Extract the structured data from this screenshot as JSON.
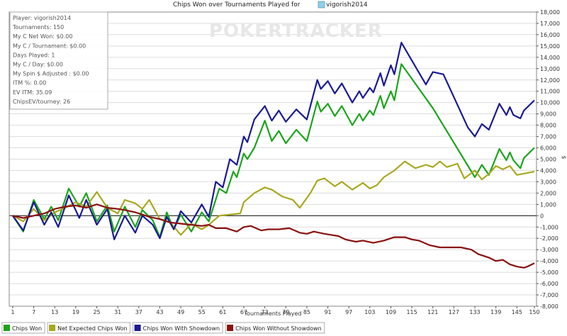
{
  "title_prefix": "Chips Won over Tournaments Played for",
  "player_name": "vigorish2014",
  "watermark": "POKERTRACKER",
  "stats": [
    "Player: vigorish2014",
    "Tournaments: 150",
    "My C Net Won: $0.00",
    "My C / Tournament: $0.00",
    "Days Played: 1",
    "My C / Day: $0.00",
    "My Spin $ Adjusted : $0.00",
    "ITM %: 0.00",
    "EV ITM: 35.09",
    "ChipsEV/tourney: 26"
  ],
  "legend": [
    {
      "label": "Chips Won",
      "color": "#1aa51a"
    },
    {
      "label": "Net Expected Chips Won",
      "color": "#a8a81e"
    },
    {
      "label": "Chips Won With Showdown",
      "color": "#1a1a96"
    },
    {
      "label": "Chips Won Without Showdown",
      "color": "#8b1010"
    }
  ],
  "colors": {
    "chips_won": "#1aa51a",
    "net_expected": "#a8a81e",
    "with_showdown": "#1a1a96",
    "without_showdown": "#8b1010"
  },
  "chart_data": {
    "type": "line",
    "xlabel": "Tournaments Played",
    "ylabel": "$",
    "xlim": [
      1,
      150
    ],
    "ylim": [
      -8000,
      18000
    ],
    "xticks": [
      1,
      7,
      13,
      19,
      25,
      31,
      37,
      43,
      49,
      55,
      61,
      67,
      73,
      79,
      85,
      91,
      97,
      103,
      109,
      115,
      121,
      127,
      133,
      139,
      145,
      150
    ],
    "yticks": [
      -8000,
      -7000,
      -6000,
      -5000,
      -4000,
      -3000,
      -2000,
      -1000,
      0,
      1000,
      2000,
      3000,
      4000,
      5000,
      6000,
      7000,
      8000,
      9000,
      10000,
      11000,
      12000,
      13000,
      14000,
      15000,
      16000,
      17000,
      18000
    ],
    "ytick_labels": [
      "-8,000",
      "-7,000",
      "-6,000",
      "-5,000",
      "-4,000",
      "-3,000",
      "-2,000",
      "-1,000",
      "0",
      "1,000",
      "2,000",
      "3,000",
      "4,000",
      "5,000",
      "6,000",
      "7,000",
      "8,000",
      "9,000",
      "10,000",
      "11,000",
      "12,000",
      "13,000",
      "14,000",
      "15,000",
      "16,000",
      "17,000",
      "18,000"
    ],
    "series": [
      {
        "name": "Chips Won",
        "color": "#1aa51a",
        "points": [
          [
            1,
            0
          ],
          [
            4,
            -1400
          ],
          [
            7,
            1400
          ],
          [
            10,
            -300
          ],
          [
            12,
            800
          ],
          [
            14,
            -400
          ],
          [
            17,
            2400
          ],
          [
            20,
            800
          ],
          [
            22,
            2000
          ],
          [
            25,
            -500
          ],
          [
            28,
            900
          ],
          [
            30,
            -1400
          ],
          [
            33,
            800
          ],
          [
            36,
            -1000
          ],
          [
            38,
            500
          ],
          [
            41,
            -400
          ],
          [
            43,
            -1900
          ],
          [
            45,
            300
          ],
          [
            47,
            -1200
          ],
          [
            49,
            100
          ],
          [
            52,
            -1400
          ],
          [
            55,
            300
          ],
          [
            57,
            -500
          ],
          [
            60,
            2400
          ],
          [
            62,
            2000
          ],
          [
            64,
            3900
          ],
          [
            65,
            3400
          ],
          [
            67,
            5500
          ],
          [
            68,
            5000
          ],
          [
            70,
            6000
          ],
          [
            73,
            8400
          ],
          [
            75,
            6600
          ],
          [
            77,
            7500
          ],
          [
            79,
            6400
          ],
          [
            82,
            7600
          ],
          [
            85,
            6600
          ],
          [
            88,
            10100
          ],
          [
            89,
            9200
          ],
          [
            91,
            9900
          ],
          [
            93,
            8800
          ],
          [
            95,
            9700
          ],
          [
            98,
            8000
          ],
          [
            100,
            9000
          ],
          [
            101,
            8400
          ],
          [
            103,
            9300
          ],
          [
            104,
            8900
          ],
          [
            106,
            10600
          ],
          [
            107,
            9500
          ],
          [
            109,
            11000
          ],
          [
            110,
            10200
          ],
          [
            112,
            13400
          ],
          [
            121,
            9500
          ],
          [
            133,
            3400
          ],
          [
            135,
            4500
          ],
          [
            137,
            3600
          ],
          [
            140,
            5900
          ],
          [
            142,
            4900
          ],
          [
            143,
            5600
          ],
          [
            144,
            4900
          ],
          [
            146,
            4200
          ],
          [
            147,
            5100
          ],
          [
            150,
            6000
          ]
        ]
      },
      {
        "name": "Net Expected Chips Won",
        "color": "#a8a81e",
        "points": [
          [
            1,
            0
          ],
          [
            4,
            -500
          ],
          [
            7,
            600
          ],
          [
            10,
            -400
          ],
          [
            13,
            300
          ],
          [
            16,
            700
          ],
          [
            19,
            1200
          ],
          [
            22,
            800
          ],
          [
            25,
            2100
          ],
          [
            28,
            700
          ],
          [
            31,
            200
          ],
          [
            33,
            1400
          ],
          [
            36,
            1100
          ],
          [
            38,
            600
          ],
          [
            40,
            1400
          ],
          [
            43,
            -300
          ],
          [
            46,
            -600
          ],
          [
            49,
            -1700
          ],
          [
            52,
            -700
          ],
          [
            55,
            -1200
          ],
          [
            57,
            -800
          ],
          [
            60,
            0
          ],
          [
            63,
            100
          ],
          [
            66,
            200
          ],
          [
            67,
            1200
          ],
          [
            70,
            2000
          ],
          [
            73,
            2500
          ],
          [
            75,
            2300
          ],
          [
            78,
            1700
          ],
          [
            81,
            1400
          ],
          [
            83,
            700
          ],
          [
            86,
            2000
          ],
          [
            88,
            3100
          ],
          [
            90,
            3300
          ],
          [
            93,
            2600
          ],
          [
            95,
            3000
          ],
          [
            98,
            2300
          ],
          [
            101,
            2900
          ],
          [
            103,
            2400
          ],
          [
            105,
            2700
          ],
          [
            107,
            3400
          ],
          [
            110,
            4000
          ],
          [
            113,
            4800
          ],
          [
            116,
            4200
          ],
          [
            119,
            4500
          ],
          [
            121,
            4300
          ],
          [
            123,
            4800
          ],
          [
            125,
            4300
          ],
          [
            128,
            4600
          ],
          [
            130,
            3300
          ],
          [
            133,
            4000
          ],
          [
            135,
            3200
          ],
          [
            137,
            3700
          ],
          [
            139,
            4400
          ],
          [
            141,
            4100
          ],
          [
            143,
            4400
          ],
          [
            145,
            3600
          ],
          [
            150,
            3900
          ]
        ]
      },
      {
        "name": "Chips Won With Showdown",
        "color": "#1a1a96",
        "points": [
          [
            1,
            0
          ],
          [
            4,
            -1300
          ],
          [
            7,
            1200
          ],
          [
            10,
            -800
          ],
          [
            12,
            300
          ],
          [
            14,
            -1000
          ],
          [
            17,
            1800
          ],
          [
            20,
            -200
          ],
          [
            22,
            1400
          ],
          [
            25,
            -800
          ],
          [
            28,
            600
          ],
          [
            30,
            -2100
          ],
          [
            33,
            0
          ],
          [
            36,
            -1500
          ],
          [
            38,
            0
          ],
          [
            41,
            -800
          ],
          [
            43,
            -2000
          ],
          [
            45,
            -100
          ],
          [
            47,
            -1200
          ],
          [
            49,
            400
          ],
          [
            52,
            -600
          ],
          [
            55,
            1000
          ],
          [
            57,
            -100
          ],
          [
            59,
            3000
          ],
          [
            61,
            2500
          ],
          [
            63,
            5000
          ],
          [
            65,
            4500
          ],
          [
            67,
            7000
          ],
          [
            68,
            6500
          ],
          [
            70,
            8500
          ],
          [
            73,
            9700
          ],
          [
            75,
            8400
          ],
          [
            77,
            9300
          ],
          [
            79,
            8300
          ],
          [
            82,
            9400
          ],
          [
            85,
            8500
          ],
          [
            88,
            12000
          ],
          [
            89,
            11200
          ],
          [
            91,
            11900
          ],
          [
            93,
            10800
          ],
          [
            95,
            11700
          ],
          [
            98,
            10000
          ],
          [
            100,
            11000
          ],
          [
            101,
            10400
          ],
          [
            103,
            11300
          ],
          [
            104,
            10900
          ],
          [
            106,
            12600
          ],
          [
            107,
            11500
          ],
          [
            109,
            13300
          ],
          [
            110,
            12500
          ],
          [
            112,
            15300
          ],
          [
            119,
            11600
          ],
          [
            121,
            12700
          ],
          [
            124,
            12500
          ],
          [
            131,
            7800
          ],
          [
            133,
            7000
          ],
          [
            135,
            8100
          ],
          [
            137,
            7600
          ],
          [
            140,
            9900
          ],
          [
            142,
            8900
          ],
          [
            143,
            9600
          ],
          [
            144,
            8900
          ],
          [
            146,
            8600
          ],
          [
            147,
            9300
          ],
          [
            150,
            10200
          ]
        ]
      },
      {
        "name": "Chips Won Without Showdown",
        "color": "#8b1010",
        "points": [
          [
            1,
            0
          ],
          [
            4,
            -200
          ],
          [
            7,
            0
          ],
          [
            10,
            200
          ],
          [
            13,
            600
          ],
          [
            16,
            800
          ],
          [
            19,
            900
          ],
          [
            22,
            700
          ],
          [
            25,
            1000
          ],
          [
            28,
            700
          ],
          [
            31,
            600
          ],
          [
            33,
            500
          ],
          [
            36,
            300
          ],
          [
            38,
            100
          ],
          [
            40,
            -100
          ],
          [
            43,
            -300
          ],
          [
            46,
            -600
          ],
          [
            49,
            -700
          ],
          [
            52,
            -800
          ],
          [
            55,
            -900
          ],
          [
            57,
            -800
          ],
          [
            59,
            -1100
          ],
          [
            62,
            -1100
          ],
          [
            65,
            -1400
          ],
          [
            67,
            -1000
          ],
          [
            69,
            -900
          ],
          [
            72,
            -1300
          ],
          [
            74,
            -1200
          ],
          [
            77,
            -1200
          ],
          [
            80,
            -1100
          ],
          [
            83,
            -1500
          ],
          [
            85,
            -1600
          ],
          [
            87,
            -1400
          ],
          [
            90,
            -1600
          ],
          [
            92,
            -1700
          ],
          [
            94,
            -1800
          ],
          [
            96,
            -2100
          ],
          [
            99,
            -2300
          ],
          [
            101,
            -2200
          ],
          [
            104,
            -2400
          ],
          [
            107,
            -2200
          ],
          [
            110,
            -1900
          ],
          [
            113,
            -1900
          ],
          [
            115,
            -2100
          ],
          [
            117,
            -2200
          ],
          [
            120,
            -2600
          ],
          [
            123,
            -2800
          ],
          [
            126,
            -2800
          ],
          [
            129,
            -2800
          ],
          [
            132,
            -3000
          ],
          [
            134,
            -3400
          ],
          [
            137,
            -3700
          ],
          [
            139,
            -4000
          ],
          [
            141,
            -3900
          ],
          [
            143,
            -4300
          ],
          [
            145,
            -4500
          ],
          [
            147,
            -4600
          ],
          [
            148,
            -4500
          ],
          [
            150,
            -4200
          ]
        ]
      }
    ]
  }
}
